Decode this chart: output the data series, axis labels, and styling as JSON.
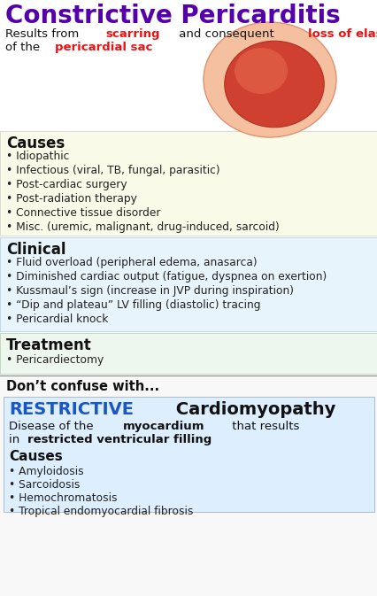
{
  "title": "Constrictive Pericarditis",
  "title_color": "#5500aa",
  "bg_color": "#ffffff",
  "subtitle_line1": [
    {
      "text": "Results from ",
      "color": "#111111",
      "bold": false
    },
    {
      "text": "scarring",
      "color": "#ee1111",
      "bold": true
    },
    {
      "text": " and consequent ",
      "color": "#111111",
      "bold": false
    },
    {
      "text": "loss of elasticity",
      "color": "#ee1111",
      "bold": true
    }
  ],
  "subtitle_line2": [
    {
      "text": "of the ",
      "color": "#111111",
      "bold": false
    },
    {
      "text": "pericardial sac",
      "color": "#ee1111",
      "bold": true
    }
  ],
  "causes_title": "Causes",
  "causes_bg": "#fafae8",
  "causes_items": [
    "Idiopathic",
    "Infectious (viral, TB, fungal, parasitic)",
    "Post-cardiac surgery",
    "Post-radiation therapy",
    "Connective tissue disorder",
    "Misc. (uremic, malignant, drug-induced, sarcoid)"
  ],
  "clinical_title": "Clinical",
  "clinical_bg": "#e8f4fb",
  "clinical_items": [
    "Fluid overload (peripheral edema, anasarca)",
    "Diminished cardiac output (fatigue, dyspnea on exertion)",
    "Kussmaul’s sign (increase in JVP during inspiration)",
    "“Dip and plateau” LV filling (diastolic) tracing",
    "Pericardial knock"
  ],
  "treatment_title": "Treatment",
  "treatment_bg": "#eef7ee",
  "treatment_items": [
    "Pericardiectomy"
  ],
  "confuse_title": "Don’t confuse with...",
  "confuse_bg": "#f8f8f8",
  "restrictive_word": "RESTRICTIVE",
  "restrictive_word_color": "#1a56c4",
  "cardiomyopathy_word": " Cardiomyopathy",
  "cardiomyopathy_color": "#111111",
  "rc_desc_line1": [
    {
      "text": "Disease of the ",
      "color": "#111111",
      "bold": false
    },
    {
      "text": "myocardium",
      "color": "#111111",
      "bold": true
    },
    {
      "text": " that results",
      "color": "#111111",
      "bold": false
    }
  ],
  "rc_desc_line2": [
    {
      "text": "in ",
      "color": "#111111",
      "bold": false
    },
    {
      "text": "restricted ventricular filling",
      "color": "#111111",
      "bold": true
    }
  ],
  "rc_causes_title": "Causes",
  "rc_causes_items": [
    "Amyloidosis",
    "Sarcoidosis",
    "Hemochromatosis",
    "Tropical endomyocardial fibrosis"
  ],
  "section_title_color": "#111111",
  "bullet_color": "#222222",
  "title_fontsize": 20,
  "subtitle_fontsize": 9.5,
  "section_title_fontsize": 12,
  "body_fontsize": 8.8,
  "confuse_title_fontsize": 10.5,
  "restrictive_fontsize": 14,
  "rc_causes_title_fontsize": 11
}
